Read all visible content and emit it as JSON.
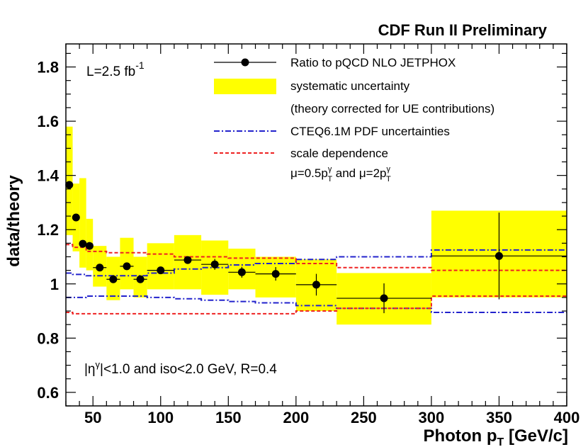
{
  "chart_data": {
    "type": "scatter",
    "title": "CDF Run II Preliminary",
    "xlabel": "Photon p",
    "xlabel_sub": "T",
    "xlabel_unit": " [GeV/c]",
    "ylabel": "data/theory",
    "xlim": [
      30,
      400
    ],
    "ylim": [
      0.55,
      1.885
    ],
    "x_ticks": [
      50,
      100,
      150,
      200,
      250,
      300,
      350,
      400
    ],
    "y_ticks": [
      0.6,
      0.8,
      1.0,
      1.2,
      1.4,
      1.6,
      1.8
    ],
    "y_tick_labels": [
      "0.6",
      "0.8",
      "1",
      "1.2",
      "1.4",
      "1.6",
      "1.8"
    ],
    "lumi_label": "L=2.5 fb",
    "lumi_sup": "-1",
    "cut_label": "|η",
    "cut_label_sup": "γ",
    "cut_label_rest": "|<1.0 and iso<2.0 GeV, R=0.4",
    "legend": {
      "placement": "top-right",
      "entries": [
        {
          "label": "Ratio to pQCD NLO JETPHOX"
        },
        {
          "label": "systematic uncertainty"
        },
        {
          "label": "(theory corrected for UE contributions)"
        },
        {
          "label": "CTEQ6.1M PDF uncertainties"
        },
        {
          "label": "scale dependence"
        }
      ],
      "mu_line": {
        "mu1": "μ=0.5p",
        "sup": "γ",
        "sub": "T",
        "mid": " and μ=2p"
      }
    },
    "series": [
      {
        "name": "Ratio to pQCD NLO JETPHOX",
        "color": "#000000",
        "x": [
          32.5,
          37.5,
          42.5,
          47.5,
          55,
          65,
          75,
          85,
          100,
          120,
          140,
          160,
          185,
          215,
          265,
          350
        ],
        "xerr": [
          2.5,
          2.5,
          2.5,
          2.5,
          5,
          5,
          5,
          5,
          10,
          10,
          10,
          10,
          15,
          15,
          35,
          50
        ],
        "y": [
          1.365,
          1.245,
          1.148,
          1.14,
          1.06,
          1.017,
          1.065,
          1.017,
          1.05,
          1.088,
          1.072,
          1.043,
          1.037,
          0.997,
          0.947,
          1.103
        ],
        "yerr": [
          0.0,
          0.0,
          0.0,
          0.0,
          0.0,
          0.0,
          0.0,
          0.0,
          0.0,
          0.0,
          0.02,
          0.02,
          0.025,
          0.04,
          0.055,
          0.16
        ]
      }
    ],
    "systematic_band": {
      "name": "systematic uncertainty",
      "color": "#ffff00",
      "bins": [
        {
          "x0": 30,
          "x1": 35,
          "lo": 1.18,
          "hi": 1.58
        },
        {
          "x0": 35,
          "x1": 40,
          "lo": 1.12,
          "hi": 1.37
        },
        {
          "x0": 40,
          "x1": 45,
          "lo": 1.06,
          "hi": 1.39
        },
        {
          "x0": 45,
          "x1": 50,
          "lo": 1.05,
          "hi": 1.24
        },
        {
          "x0": 50,
          "x1": 60,
          "lo": 0.99,
          "hi": 1.14
        },
        {
          "x0": 60,
          "x1": 70,
          "lo": 0.94,
          "hi": 1.1
        },
        {
          "x0": 70,
          "x1": 80,
          "lo": 0.98,
          "hi": 1.17
        },
        {
          "x0": 80,
          "x1": 90,
          "lo": 0.95,
          "hi": 1.1
        },
        {
          "x0": 90,
          "x1": 110,
          "lo": 0.98,
          "hi": 1.15
        },
        {
          "x0": 110,
          "x1": 130,
          "lo": 0.98,
          "hi": 1.18
        },
        {
          "x0": 130,
          "x1": 150,
          "lo": 0.96,
          "hi": 1.16
        },
        {
          "x0": 150,
          "x1": 170,
          "lo": 0.98,
          "hi": 1.13
        },
        {
          "x0": 170,
          "x1": 200,
          "lo": 0.95,
          "hi": 1.1
        },
        {
          "x0": 200,
          "x1": 230,
          "lo": 0.9,
          "hi": 1.09
        },
        {
          "x0": 230,
          "x1": 300,
          "lo": 0.85,
          "hi": 1.04
        },
        {
          "x0": 300,
          "x1": 400,
          "lo": 0.95,
          "hi": 1.27
        }
      ]
    },
    "pdf_uncertainty": {
      "name": "CTEQ6.1M PDF uncertainties",
      "color": "#2222cc",
      "bins": [
        {
          "x0": 30,
          "x1": 35,
          "lo": 0.95,
          "hi": 1.04
        },
        {
          "x0": 35,
          "x1": 45,
          "lo": 0.95,
          "hi": 1.035
        },
        {
          "x0": 45,
          "x1": 60,
          "lo": 0.955,
          "hi": 1.03
        },
        {
          "x0": 60,
          "x1": 90,
          "lo": 0.955,
          "hi": 1.03
        },
        {
          "x0": 90,
          "x1": 110,
          "lo": 0.95,
          "hi": 1.04
        },
        {
          "x0": 110,
          "x1": 130,
          "lo": 0.945,
          "hi": 1.055
        },
        {
          "x0": 130,
          "x1": 150,
          "lo": 0.94,
          "hi": 1.06
        },
        {
          "x0": 150,
          "x1": 170,
          "lo": 0.935,
          "hi": 1.07
        },
        {
          "x0": 170,
          "x1": 200,
          "lo": 0.93,
          "hi": 1.075
        },
        {
          "x0": 200,
          "x1": 230,
          "lo": 0.92,
          "hi": 1.09
        },
        {
          "x0": 230,
          "x1": 300,
          "lo": 0.91,
          "hi": 1.1
        },
        {
          "x0": 300,
          "x1": 400,
          "lo": 0.895,
          "hi": 1.125
        }
      ]
    },
    "scale_dependence": {
      "name": "scale dependence",
      "color": "#ee2222",
      "bins": [
        {
          "x0": 30,
          "x1": 35,
          "lo": 0.895,
          "hi": 1.145
        },
        {
          "x0": 35,
          "x1": 45,
          "lo": 0.89,
          "hi": 1.135
        },
        {
          "x0": 45,
          "x1": 60,
          "lo": 0.89,
          "hi": 1.12
        },
        {
          "x0": 60,
          "x1": 90,
          "lo": 0.89,
          "hi": 1.115
        },
        {
          "x0": 90,
          "x1": 110,
          "lo": 0.89,
          "hi": 1.11
        },
        {
          "x0": 110,
          "x1": 150,
          "lo": 0.89,
          "hi": 1.1
        },
        {
          "x0": 150,
          "x1": 200,
          "lo": 0.89,
          "hi": 1.095
        },
        {
          "x0": 200,
          "x1": 230,
          "lo": 0.9,
          "hi": 1.075
        },
        {
          "x0": 230,
          "x1": 300,
          "lo": 0.91,
          "hi": 1.06
        },
        {
          "x0": 300,
          "x1": 400,
          "lo": 0.955,
          "hi": 1.05
        }
      ]
    }
  }
}
